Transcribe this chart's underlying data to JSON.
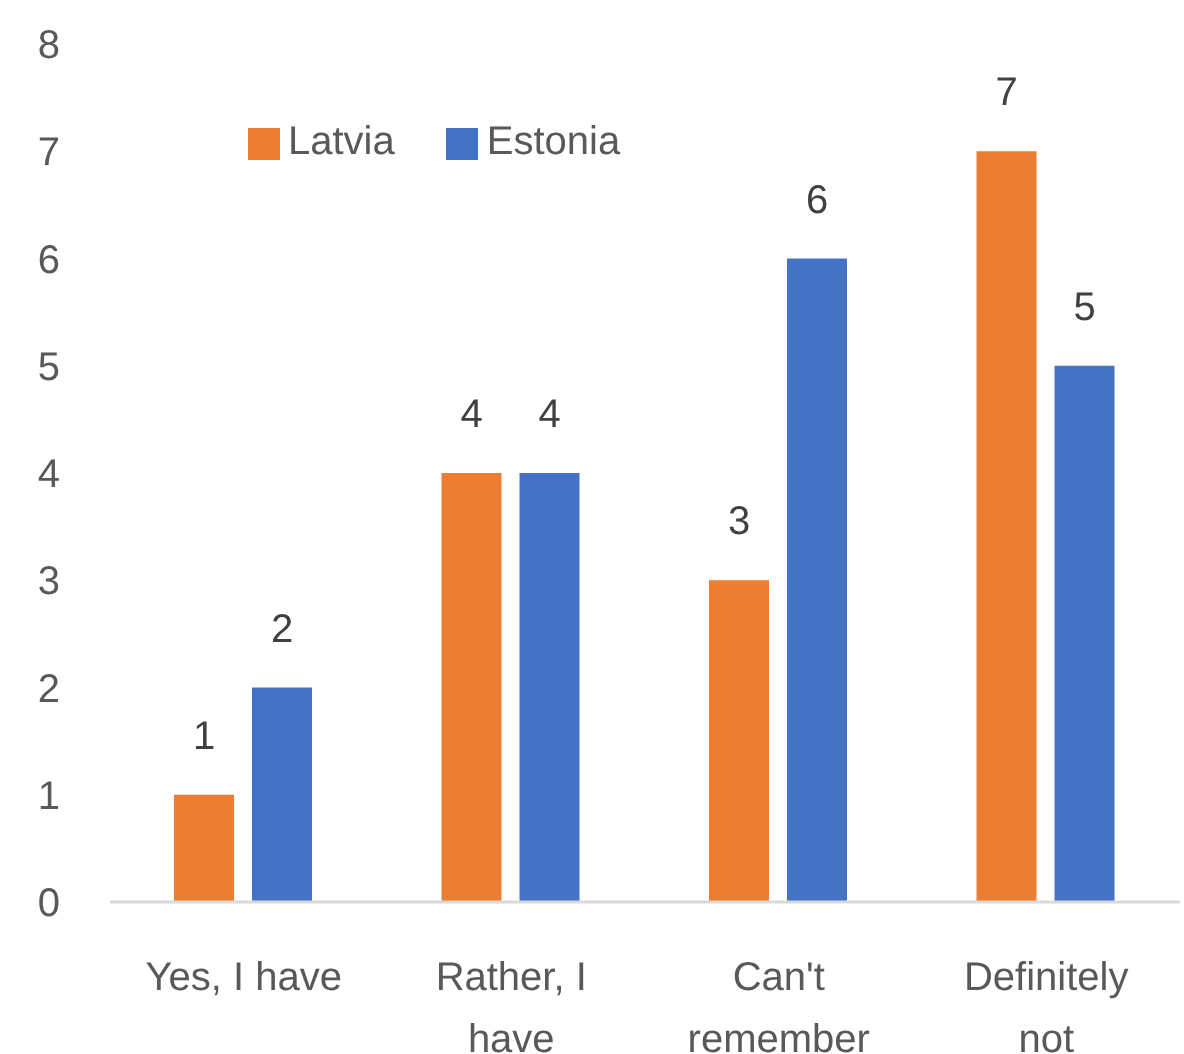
{
  "chart_data": {
    "type": "bar",
    "categories": [
      "Yes, I have",
      "Rather, I have",
      "Can't remember",
      "Definitely not"
    ],
    "series": [
      {
        "name": "Latvia",
        "color": "#ed7d31",
        "values": [
          1,
          4,
          3,
          7
        ]
      },
      {
        "name": "Estonia",
        "color": "#4472c4",
        "values": [
          2,
          4,
          6,
          5
        ]
      }
    ],
    "ylim": [
      0,
      8
    ],
    "yticks": [
      0,
      1,
      2,
      3,
      4,
      5,
      6,
      7,
      8
    ],
    "grid": false,
    "legend": "top left",
    "data_labels": true
  }
}
